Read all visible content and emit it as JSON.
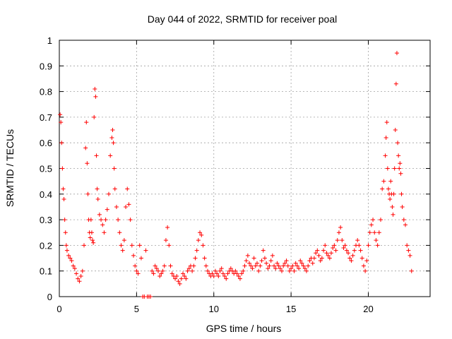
{
  "chart_data": {
    "type": "scatter",
    "title": "Day 044 of 2022, SRMTID for receiver poal",
    "xlabel": "GPS time / hours",
    "ylabel": "SRMTID / TECUs",
    "xlim": [
      0,
      24
    ],
    "ylim": [
      0,
      1
    ],
    "xticks": [
      0,
      5,
      10,
      15,
      20
    ],
    "xtick_labels": [
      "0",
      "5",
      "10",
      "15",
      "20"
    ],
    "yticks": [
      0,
      0.1,
      0.2,
      0.3,
      0.4,
      0.5,
      0.6,
      0.7,
      0.8,
      0.9,
      1
    ],
    "ytick_labels": [
      "0",
      "0.1",
      "0.2",
      "0.3",
      "0.4",
      "0.5",
      "0.6",
      "0.7",
      "0.8",
      "0.9",
      "1"
    ],
    "grid": true,
    "marker": "plus",
    "color": "#ff0000",
    "series": [
      {
        "name": "SRMTID",
        "x": [
          0.05,
          0.1,
          0.15,
          0.2,
          0.25,
          0.3,
          0.35,
          0.4,
          0.45,
          0.5,
          0.6,
          0.7,
          0.8,
          0.9,
          1.0,
          1.1,
          1.2,
          1.3,
          1.4,
          1.5,
          1.6,
          1.7,
          1.75,
          1.8,
          1.85,
          1.9,
          1.95,
          2.0,
          2.05,
          2.1,
          2.15,
          2.2,
          2.25,
          2.3,
          2.35,
          2.4,
          2.45,
          2.5,
          2.6,
          2.7,
          2.8,
          2.9,
          3.0,
          3.1,
          3.2,
          3.3,
          3.4,
          3.45,
          3.5,
          3.55,
          3.6,
          3.7,
          3.8,
          3.9,
          4.0,
          4.1,
          4.2,
          4.3,
          4.4,
          4.5,
          4.6,
          4.7,
          4.8,
          4.9,
          5.0,
          5.1,
          5.2,
          5.3,
          5.4,
          5.5,
          5.6,
          5.7,
          5.8,
          5.9,
          6.0,
          6.1,
          6.2,
          6.3,
          6.4,
          6.5,
          6.6,
          6.7,
          6.8,
          6.9,
          7.0,
          7.1,
          7.2,
          7.3,
          7.4,
          7.5,
          7.6,
          7.7,
          7.8,
          7.9,
          8.0,
          8.1,
          8.2,
          8.3,
          8.4,
          8.5,
          8.6,
          8.7,
          8.8,
          8.9,
          9.0,
          9.1,
          9.2,
          9.3,
          9.4,
          9.5,
          9.6,
          9.7,
          9.8,
          9.9,
          10.0,
          10.1,
          10.2,
          10.3,
          10.4,
          10.5,
          10.6,
          10.7,
          10.8,
          10.9,
          11.0,
          11.1,
          11.2,
          11.3,
          11.4,
          11.5,
          11.6,
          11.7,
          11.8,
          11.9,
          12.0,
          12.1,
          12.2,
          12.3,
          12.4,
          12.5,
          12.6,
          12.7,
          12.8,
          12.9,
          13.0,
          13.1,
          13.2,
          13.3,
          13.4,
          13.5,
          13.6,
          13.7,
          13.8,
          13.9,
          14.0,
          14.1,
          14.2,
          14.3,
          14.4,
          14.5,
          14.6,
          14.7,
          14.8,
          14.9,
          15.0,
          15.1,
          15.2,
          15.3,
          15.4,
          15.5,
          15.6,
          15.7,
          15.8,
          15.9,
          16.0,
          16.1,
          16.2,
          16.3,
          16.4,
          16.5,
          16.6,
          16.7,
          16.8,
          16.9,
          17.0,
          17.1,
          17.2,
          17.3,
          17.4,
          17.5,
          17.6,
          17.7,
          17.8,
          17.9,
          18.0,
          18.1,
          18.2,
          18.3,
          18.4,
          18.5,
          18.6,
          18.7,
          18.8,
          18.9,
          19.0,
          19.1,
          19.2,
          19.3,
          19.4,
          19.5,
          19.6,
          19.7,
          19.8,
          19.9,
          20.0,
          20.1,
          20.2,
          20.3,
          20.4,
          20.5,
          20.6,
          20.7,
          20.8,
          20.9,
          21.0,
          21.1,
          21.15,
          21.2,
          21.25,
          21.3,
          21.35,
          21.4,
          21.45,
          21.5,
          21.55,
          21.6,
          21.65,
          21.7,
          21.75,
          21.8,
          21.85,
          21.9,
          21.95,
          22.0,
          22.05,
          22.1,
          22.15,
          22.2,
          22.3,
          22.4,
          22.5,
          22.6,
          22.7,
          22.8
        ],
        "y": [
          0.71,
          0.68,
          0.6,
          0.5,
          0.42,
          0.38,
          0.3,
          0.25,
          0.2,
          0.18,
          0.16,
          0.15,
          0.14,
          0.12,
          0.11,
          0.09,
          0.07,
          0.06,
          0.08,
          0.1,
          0.2,
          0.58,
          0.68,
          0.52,
          0.4,
          0.3,
          0.25,
          0.23,
          0.3,
          0.25,
          0.22,
          0.21,
          0.7,
          0.81,
          0.78,
          0.55,
          0.42,
          0.38,
          0.32,
          0.3,
          0.28,
          0.25,
          0.3,
          0.34,
          0.4,
          0.55,
          0.62,
          0.65,
          0.6,
          0.5,
          0.42,
          0.35,
          0.3,
          0.25,
          0.2,
          0.18,
          0.22,
          0.35,
          0.42,
          0.36,
          0.3,
          0.2,
          0.16,
          0.12,
          0.1,
          0.09,
          0.2,
          0.15,
          0.0,
          0.0,
          0.18,
          0.0,
          0.0,
          0.0,
          0.1,
          0.09,
          0.12,
          0.11,
          0.1,
          0.08,
          0.09,
          0.1,
          0.12,
          0.22,
          0.27,
          0.2,
          0.12,
          0.09,
          0.08,
          0.07,
          0.08,
          0.06,
          0.05,
          0.07,
          0.09,
          0.08,
          0.07,
          0.1,
          0.11,
          0.12,
          0.1,
          0.12,
          0.15,
          0.18,
          0.22,
          0.25,
          0.24,
          0.2,
          0.15,
          0.12,
          0.1,
          0.09,
          0.08,
          0.09,
          0.08,
          0.1,
          0.09,
          0.08,
          0.1,
          0.11,
          0.09,
          0.08,
          0.07,
          0.09,
          0.1,
          0.11,
          0.1,
          0.09,
          0.1,
          0.09,
          0.08,
          0.07,
          0.09,
          0.1,
          0.12,
          0.14,
          0.16,
          0.13,
          0.12,
          0.11,
          0.15,
          0.12,
          0.13,
          0.1,
          0.12,
          0.14,
          0.18,
          0.15,
          0.13,
          0.11,
          0.12,
          0.14,
          0.16,
          0.12,
          0.11,
          0.13,
          0.12,
          0.11,
          0.1,
          0.12,
          0.13,
          0.14,
          0.12,
          0.1,
          0.11,
          0.12,
          0.1,
          0.13,
          0.12,
          0.11,
          0.14,
          0.13,
          0.12,
          0.11,
          0.1,
          0.12,
          0.14,
          0.15,
          0.13,
          0.15,
          0.17,
          0.18,
          0.16,
          0.14,
          0.15,
          0.18,
          0.2,
          0.17,
          0.16,
          0.15,
          0.17,
          0.19,
          0.2,
          0.18,
          0.22,
          0.25,
          0.27,
          0.22,
          0.19,
          0.2,
          0.18,
          0.17,
          0.15,
          0.14,
          0.16,
          0.18,
          0.2,
          0.22,
          0.2,
          0.18,
          0.15,
          0.12,
          0.1,
          0.14,
          0.2,
          0.25,
          0.28,
          0.3,
          0.25,
          0.22,
          0.2,
          0.25,
          0.3,
          0.42,
          0.45,
          0.55,
          0.62,
          0.68,
          0.5,
          0.42,
          0.4,
          0.38,
          0.45,
          0.4,
          0.35,
          0.32,
          0.4,
          0.5,
          0.65,
          0.83,
          0.95,
          0.6,
          0.55,
          0.5,
          0.52,
          0.48,
          0.4,
          0.35,
          0.3,
          0.28,
          0.2,
          0.18,
          0.16,
          0.1
        ]
      }
    ]
  }
}
